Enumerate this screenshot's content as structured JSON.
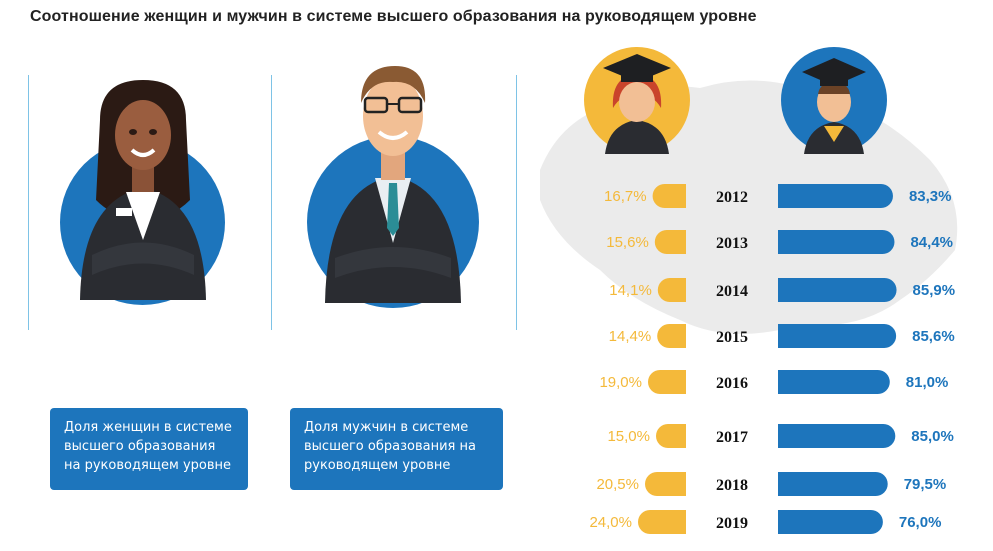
{
  "title": "Соотношение женщин и мужчин в системе высшего образования на руководящем уровне",
  "labels": {
    "women": "Доля женщин в системе высшего образования на руководящем уровне",
    "men": "Доля мужчин в системе высшего образования на руководящем уровне"
  },
  "colors": {
    "women": "#f4b93a",
    "men": "#1d75bc",
    "map": "#ebebeb"
  },
  "chart_data": {
    "type": "bar",
    "categories": [
      "2012",
      "2013",
      "2014",
      "2015",
      "2016",
      "2017",
      "2018",
      "2019"
    ],
    "series": [
      {
        "name": "women",
        "values": [
          16.7,
          15.6,
          14.1,
          14.4,
          19.0,
          15.0,
          20.5,
          24.0
        ],
        "labels": [
          "16,7%",
          "15,6%",
          "14,1%",
          "14,4%",
          "19,0%",
          "15,0%",
          "20,5%",
          "24,0%"
        ]
      },
      {
        "name": "men",
        "values": [
          83.3,
          84.4,
          85.9,
          85.6,
          81.0,
          85.0,
          79.5,
          76.0
        ],
        "labels": [
          "83,3%",
          "84,4%",
          "85,9%",
          "85,6%",
          "81,0%",
          "85,0%",
          "79,5%",
          "76,0%"
        ]
      }
    ]
  }
}
